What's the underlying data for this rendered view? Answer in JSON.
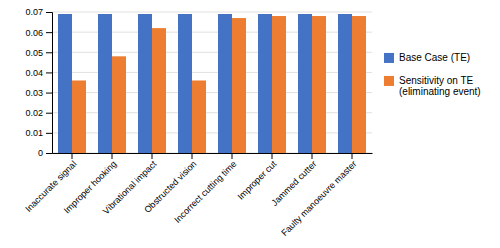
{
  "chart_data": {
    "type": "bar",
    "categories": [
      "Inaccurate signal",
      "Improper hooking",
      "Vibrational impact",
      "Obstructed vision",
      "Incorrect cutting time",
      "Improper cut",
      "Jammed cutter",
      "Faulty manoeuvre master"
    ],
    "series": [
      {
        "name": "Base Case (TE)",
        "color": "#4472C4",
        "values": [
          0.069,
          0.069,
          0.069,
          0.069,
          0.069,
          0.069,
          0.069,
          0.069
        ]
      },
      {
        "name": "Sensitivity on TE\n(eliminating event)",
        "color": "#ED7D31",
        "values": [
          0.036,
          0.048,
          0.062,
          0.036,
          0.067,
          0.068,
          0.068,
          0.068
        ]
      }
    ],
    "ylim": [
      0,
      0.07
    ],
    "yticks": [
      0,
      0.01,
      0.02,
      0.03,
      0.04,
      0.05,
      0.06,
      0.07
    ],
    "grid": true,
    "legend": "right"
  }
}
